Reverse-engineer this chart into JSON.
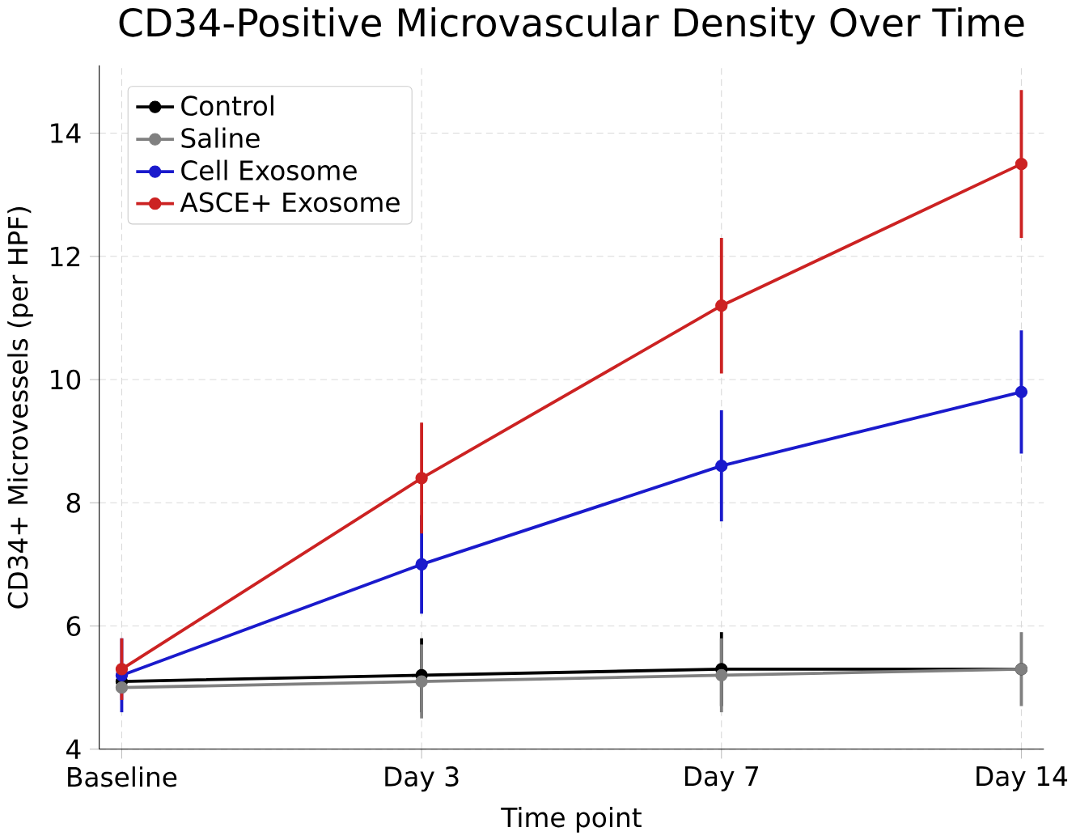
{
  "chart_data": {
    "type": "line",
    "title": "CD34-Positive Microvascular Density Over Time",
    "xlabel": "Time point",
    "ylabel": "CD34+ Microvessels (per HPF)",
    "categories": [
      "Baseline",
      "Day 3",
      "Day 7",
      "Day 14"
    ],
    "series": [
      {
        "name": "Control",
        "color": "#000000",
        "values": [
          5.1,
          5.2,
          5.3,
          5.3
        ],
        "errors": [
          null,
          0.6,
          0.6,
          null
        ]
      },
      {
        "name": "Saline",
        "color": "#808080",
        "values": [
          5.0,
          5.1,
          5.2,
          5.3
        ],
        "errors": [
          null,
          0.6,
          0.6,
          0.6
        ]
      },
      {
        "name": "Cell Exosome",
        "color": "#1a1acc",
        "values": [
          5.2,
          7.0,
          8.6,
          9.8
        ],
        "errors": [
          0.6,
          0.8,
          0.9,
          1.0
        ]
      },
      {
        "name": "ASCE+ Exosome",
        "color": "#cc2222",
        "values": [
          5.3,
          8.4,
          11.2,
          13.5
        ],
        "errors": [
          0.5,
          0.9,
          1.1,
          1.2
        ]
      }
    ],
    "ylim": [
      4,
      15.1
    ],
    "yticks": [
      4,
      6,
      8,
      10,
      12,
      14
    ],
    "grid": true,
    "legend": "top left",
    "marker": "circle",
    "line_style": "solid"
  }
}
